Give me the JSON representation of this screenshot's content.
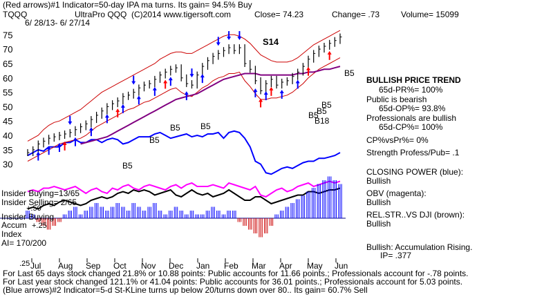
{
  "header": {
    "line1": "(Red arrows)#1 Indicator=50-day IPA ma turns. Its gain= 94.5% Buy",
    "ticker": "TQQQ",
    "company": "UltraPro QQQ",
    "copyright": "(C)2014 www.tigersoft.com",
    "close": "Close= 74.23",
    "change": "Change= .73",
    "volume": "Volume= 15099",
    "date_range": "6/ 28/13- 6/ 27/14"
  },
  "chart_data": {
    "type": "line",
    "price_axis": {
      "ticks": [
        75,
        70,
        65,
        60,
        55,
        50,
        45,
        40,
        35,
        30
      ],
      "ylim": [
        28,
        77
      ]
    },
    "months": [
      "Jul",
      "Aug",
      "Sep",
      "Oct",
      "Nov",
      "Dec",
      "Jan",
      "Feb",
      "Mar",
      "Apr",
      "May",
      "Jun"
    ],
    "price_series": {
      "name": "price",
      "values": [
        34,
        35,
        37,
        38,
        39,
        39.5,
        40,
        40.5,
        41,
        42,
        43,
        44,
        45.5,
        47,
        48.5,
        50,
        51,
        52,
        53.5,
        54,
        55,
        56.5,
        57.5,
        58,
        59.5,
        61,
        62,
        63,
        63.5,
        60,
        58,
        57.5,
        61,
        64,
        66,
        67.5,
        68.5,
        69.5,
        70.5,
        69.5,
        70.5,
        65,
        63,
        59,
        55.5,
        58,
        59.5,
        57.5,
        58.5,
        59,
        60.5,
        62,
        64,
        66.5,
        68.5,
        70,
        71,
        72,
        73,
        74.23
      ]
    },
    "upper_band": [
      38,
      39,
      40,
      42,
      43.5,
      44.5,
      45,
      46,
      47,
      48,
      49,
      50.5,
      52,
      53.5,
      55,
      56,
      57,
      58,
      59,
      60,
      61,
      62,
      63,
      64,
      65,
      66.5,
      67.5,
      68.5,
      69,
      69,
      68.5,
      68.5,
      69.5,
      70.5,
      71.5,
      72.5,
      73.5,
      74.5,
      75,
      75,
      74.5,
      73.5,
      72,
      70,
      68,
      67,
      66,
      65.5,
      65.5,
      65.5,
      66,
      67,
      68.5,
      70,
      71.5,
      72.5,
      73.5,
      74.5,
      75.5,
      76.5
    ],
    "lower_band": [
      31,
      32,
      33,
      34,
      35,
      36,
      37,
      37.5,
      38,
      38.5,
      39,
      40,
      41.5,
      43,
      44,
      45,
      46,
      47,
      48,
      49,
      49.5,
      50.5,
      51.5,
      52,
      53,
      54,
      55,
      56,
      56.5,
      55,
      54,
      53.5,
      55,
      56.5,
      57.5,
      59,
      60,
      60.5,
      61.5,
      61.5,
      62,
      59,
      57,
      54.5,
      52.5,
      52.5,
      53,
      53,
      53.5,
      54,
      55,
      56.5,
      58,
      60,
      61.5,
      63,
      64,
      65,
      66,
      67
    ],
    "ma_50day": [
      null,
      null,
      null,
      null,
      null,
      null,
      null,
      null,
      null,
      null,
      37,
      37.5,
      38,
      38.5,
      39,
      39.5,
      40.5,
      41.5,
      42.5,
      43.5,
      44.5,
      45.5,
      46.5,
      47.5,
      48.5,
      49.5,
      50.5,
      51.5,
      52.5,
      53,
      53.5,
      54,
      54.5,
      55.5,
      56.5,
      57.5,
      58.5,
      59.5,
      60,
      60.5,
      61,
      61.5,
      61.5,
      61.5,
      61,
      61,
      61,
      61,
      61,
      61,
      61,
      61.5,
      61.5,
      62,
      62,
      62.5,
      63,
      63,
      63.5,
      64
    ],
    "closing_power": [
      33,
      34,
      35,
      34.5,
      36,
      36,
      36,
      37.5,
      37.5,
      38.5,
      37.5,
      37.5,
      38.5,
      38.5,
      37.5,
      38.5,
      39,
      38.5,
      37,
      37.5,
      38.5,
      39.5,
      39.5,
      39.5,
      40.5,
      41,
      40,
      39,
      39.5,
      40,
      40.5,
      39.5,
      40,
      39.5,
      40.5,
      40.5,
      41,
      39,
      41,
      41.5,
      41,
      39,
      36,
      31,
      30,
      27,
      26.5,
      27.5,
      28.5,
      29,
      28.5,
      29.5,
      30.5,
      31,
      31,
      32,
      32,
      32.5,
      33,
      34
    ],
    "insider_buying": [
      2.5,
      3,
      2.5,
      3.5,
      3.5,
      4,
      3.5,
      3,
      3.5,
      4,
      3,
      2,
      3,
      3.5,
      2.5,
      2,
      3.5,
      3,
      4,
      4.5,
      3.5,
      3,
      4,
      4.5,
      4,
      3.5,
      3,
      4,
      4.5,
      3.5,
      4.5,
      5,
      4,
      4,
      4,
      4.5,
      4,
      3.5,
      5,
      4.5,
      4,
      3.5,
      3,
      4,
      1.5,
      1,
      2,
      3,
      3.5,
      2.5,
      3,
      4,
      4.5,
      5,
      4,
      4.5,
      5,
      5.5,
      5,
      5.5
    ],
    "obv": [
      -0.5,
      0,
      -0.5,
      0.5,
      1,
      0.5,
      1.5,
      2,
      1.5,
      1,
      0.5,
      1,
      2,
      2.5,
      3,
      2.5,
      3,
      4,
      4.5,
      4,
      5,
      4.5,
      5,
      4.5,
      3.5,
      4,
      4.5,
      5,
      3.5,
      3,
      4,
      5,
      4,
      3.5,
      4,
      3,
      3.5,
      4,
      5,
      4,
      3,
      2,
      2,
      3,
      3,
      2,
      1,
      1.5,
      2,
      2.5,
      3,
      3.5,
      3.5,
      4.5,
      4.5,
      4,
      4.5,
      5,
      5,
      5.5
    ],
    "accumulation_index": [
      0.1,
      0.05,
      -0.05,
      -0.1,
      -0.15,
      -0.1,
      -0.05,
      0.05,
      0.1,
      0.15,
      0.05,
      0.1,
      0.15,
      0.2,
      0.15,
      0.1,
      0.15,
      0.2,
      0.15,
      0.1,
      0.2,
      0.15,
      0.1,
      0.15,
      0.2,
      0.1,
      0.05,
      0.1,
      0.15,
      0.1,
      0.05,
      0.1,
      0.05,
      0.05,
      0.1,
      0.15,
      0.1,
      0.05,
      0.1,
      0.1,
      -0.05,
      -0.1,
      -0.15,
      -0.2,
      -0.25,
      -0.2,
      -0.1,
      0.05,
      0.1,
      0.15,
      0.2,
      0.25,
      0.3,
      0.35,
      0.4,
      0.45,
      0.5,
      0.55,
      0.5,
      0.45
    ],
    "colors": {
      "price": "#000000",
      "bands": "#cc0000",
      "ma": "#800080",
      "closing_power": "#0000ff",
      "obv": "#ff00ff",
      "accum_pos": "#0000ff",
      "accum_neg": "#cc0000",
      "buy_arrow": "#0000ff",
      "red_arrow": "#ff0000"
    }
  },
  "annotations": {
    "signals": [
      "B5",
      "B5",
      "B5",
      "B5",
      "S14",
      "B5",
      "B5",
      "B5",
      "B5",
      "B18"
    ],
    "insider_buying_stat": "Insider Buying=13/65",
    "insider_selling_stat": "Insider Selling= 2/65",
    "plus50": "+.50",
    "plus25": "+.25",
    "minus25": ".25",
    "ai": "AI= 170/200",
    "accum_label": [
      "Insider Buying",
      "Accum",
      "Index"
    ]
  },
  "right_panel": {
    "trend_title": "BULLISH PRICE TREND",
    "pr": "65d-PR%= 100%",
    "public_title": "Public is bearish",
    "op": "65d-OP%= 93.8%",
    "pros_title": "Professionals are bullish",
    "cp": "65d-CP%= 100%",
    "cpvspr": "CP%vsPr%=  0%",
    "strength": "Strength Profess/Pub= .1",
    "closing_power_label": "CLOSING POWER (blue):",
    "closing_power_value": "Bullish",
    "obv_label": "OBV (magenta):",
    "obv_value": "Bullish",
    "relstr_label": "REL.STR..VS DJI (brown):",
    "relstr_value": "Bullish",
    "accum_status": "Bullish: Accumulation Rising.",
    "ip": "IP=  .377"
  },
  "footer": {
    "line1": "For Last 65 days stock changed  21.8% or  10.88 points:  Public accounts for  11.66 points.;  Professionals account for -.78 points.",
    "line2": "For Last year stock changed  121.1% or  41.04 points:  Public accounts for  36.01 points.;  Professionals account for  5.03 points.",
    "line3": "(Blue arrows)#2 Indicator=5-d St-KLine turns up below 20/turns down over 80.. Its gain= 60.7% Sell"
  }
}
